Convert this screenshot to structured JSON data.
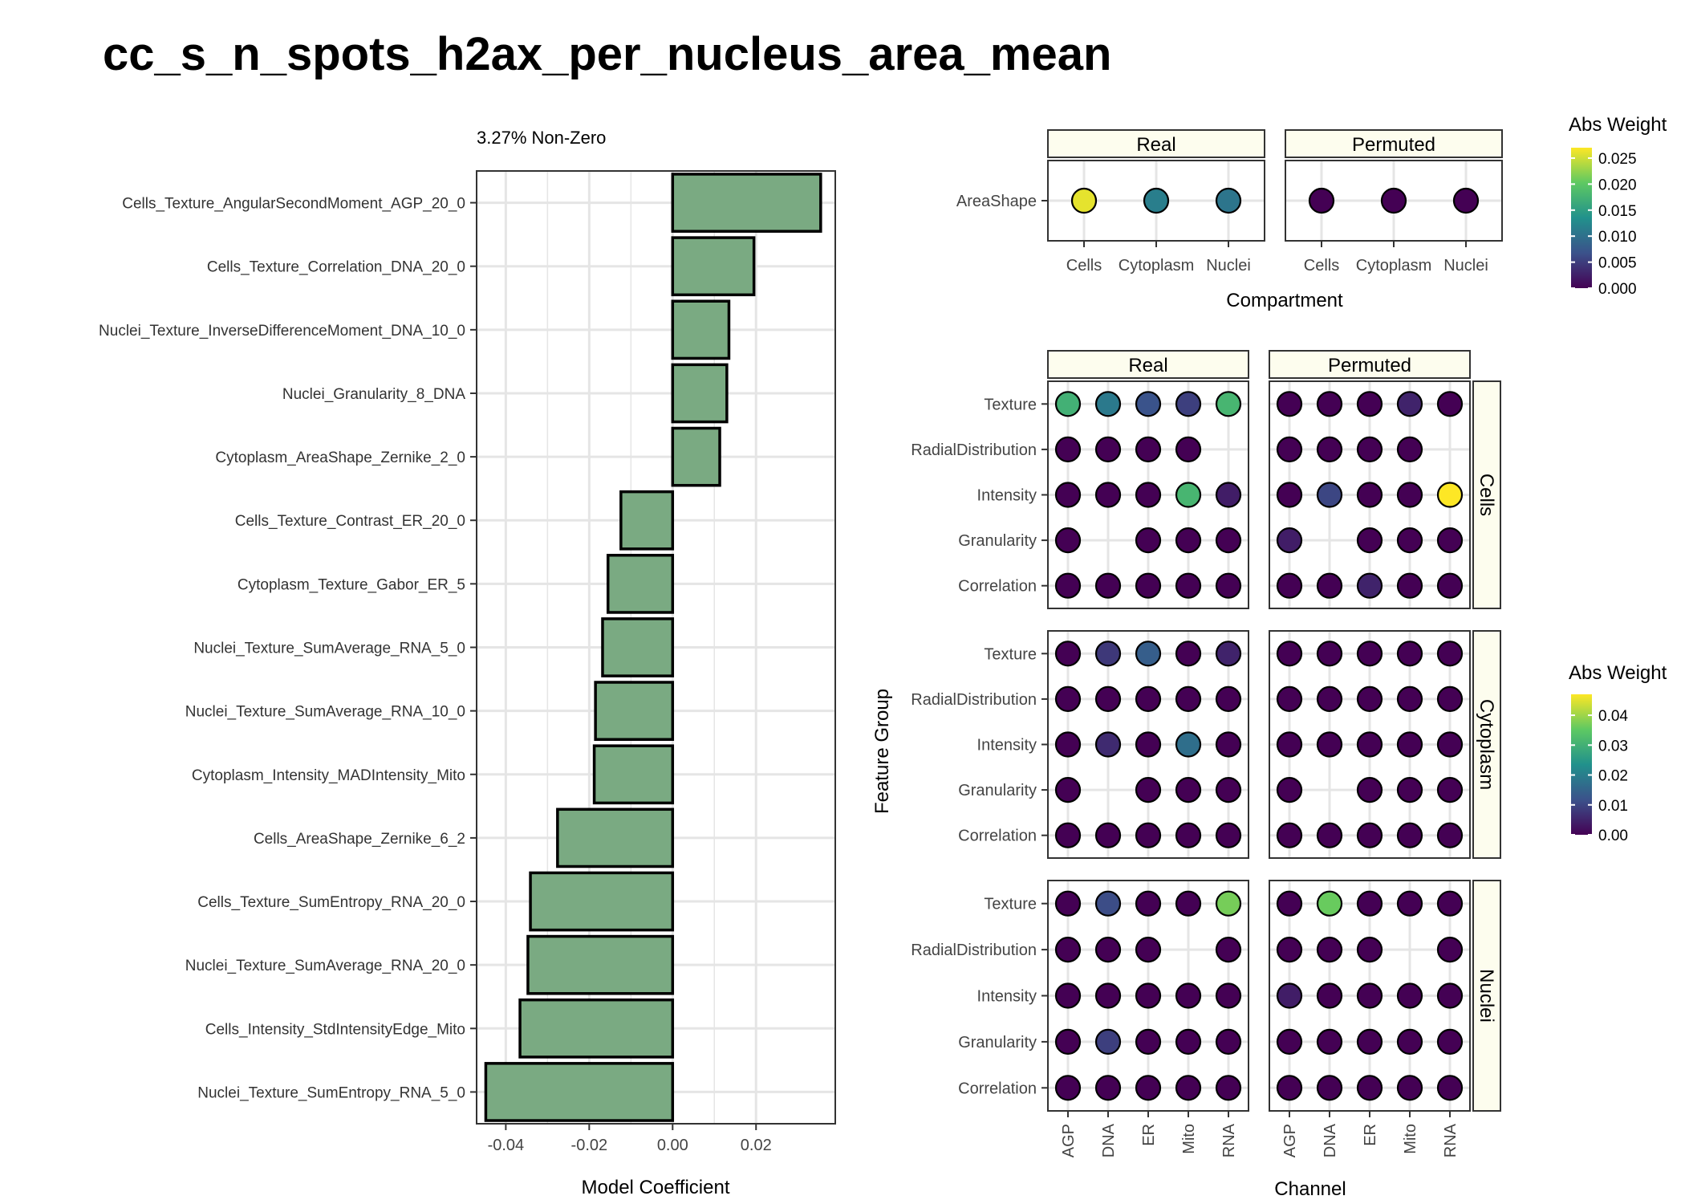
{
  "colors": {
    "bar_fill": "#7aaa82",
    "bar_stroke": "#000000",
    "grid": "#e5e5e5",
    "strip_fill": "#fdfdee",
    "viridis": [
      "#440154",
      "#3b528b",
      "#21918c",
      "#5ec962",
      "#fde725"
    ]
  },
  "chart_data": [
    {
      "type": "bar",
      "orientation": "horizontal",
      "title": "cc_s_n_spots_h2ax_per_nucleus_area_mean",
      "subtitle": "3.27% Non-Zero",
      "xlabel": "Model Coefficient",
      "ylabel": "",
      "xlim": [
        -0.047,
        0.039
      ],
      "xticks": [
        -0.04,
        -0.02,
        0.0,
        0.02
      ],
      "xtick_labels": [
        "-0.04",
        "-0.02",
        "0.00",
        "0.02"
      ],
      "grid": true,
      "categories": [
        "Cells_Texture_AngularSecondMoment_AGP_20_0",
        "Cells_Texture_Correlation_DNA_20_0",
        "Nuclei_Texture_InverseDifferenceMoment_DNA_10_0",
        "Nuclei_Granularity_8_DNA",
        "Cytoplasm_AreaShape_Zernike_2_0",
        "Cells_Texture_Contrast_ER_20_0",
        "Cytoplasm_Texture_Gabor_ER_5",
        "Nuclei_Texture_SumAverage_RNA_5_0",
        "Nuclei_Texture_SumAverage_RNA_10_0",
        "Cytoplasm_Intensity_MADIntensity_Mito",
        "Cells_AreaShape_Zernike_6_2",
        "Cells_Texture_SumEntropy_RNA_20_0",
        "Nuclei_Texture_SumAverage_RNA_20_0",
        "Cells_Intensity_StdIntensityEdge_Mito",
        "Nuclei_Texture_SumEntropy_RNA_5_0"
      ],
      "values": [
        0.0355,
        0.0195,
        0.0135,
        0.013,
        0.0113,
        -0.0124,
        -0.0155,
        -0.0168,
        -0.0185,
        -0.0188,
        -0.0276,
        -0.0341,
        -0.0347,
        -0.0366,
        -0.0448
      ]
    },
    {
      "type": "scatter",
      "subtype": "dot-heatmap",
      "xlabel": "Compartment",
      "ylabel": "",
      "panels": [
        "Real",
        "Permuted"
      ],
      "x_categories": [
        "Cells",
        "Cytoplasm",
        "Nuclei"
      ],
      "y_categories": [
        "AreaShape"
      ],
      "legend": {
        "title": "Abs Weight",
        "placement": "right",
        "range": [
          0,
          0.027
        ],
        "ticks": [
          0.0,
          0.005,
          0.01,
          0.015,
          0.02,
          0.025
        ],
        "tick_labels": [
          "0.000",
          "0.005",
          "0.010",
          "0.015",
          "0.020",
          "0.025"
        ]
      },
      "values": {
        "Real": [
          [
            0.026,
            0.0115,
            0.0105
          ]
        ],
        "Permuted": [
          [
            0.0,
            0.0,
            0.0
          ]
        ]
      }
    },
    {
      "type": "scatter",
      "subtype": "dot-heatmap",
      "xlabel": "Channel",
      "ylabel": "Feature Group",
      "panels": [
        "Real",
        "Permuted"
      ],
      "row_panels": [
        "Cells",
        "Cytoplasm",
        "Nuclei"
      ],
      "x_categories": [
        "AGP",
        "DNA",
        "ER",
        "Mito",
        "RNA"
      ],
      "y_categories": [
        "Texture",
        "RadialDistribution",
        "Intensity",
        "Granularity",
        "Correlation"
      ],
      "legend": {
        "title": "Abs Weight",
        "placement": "right",
        "range": [
          0,
          0.047
        ],
        "ticks": [
          0.0,
          0.01,
          0.02,
          0.03,
          0.04
        ],
        "tick_labels": [
          "0.00",
          "0.01",
          "0.02",
          "0.03",
          "0.04"
        ]
      },
      "values": {
        "Cells": {
          "Real": [
            [
              0.03,
              0.019,
              0.012,
              0.009,
              0.031
            ],
            [
              0.0,
              0.0,
              0.0,
              0.0,
              null
            ],
            [
              0.0,
              0.0,
              0.0,
              0.031,
              0.004
            ],
            [
              0.0,
              null,
              0.0,
              0.0,
              0.0
            ],
            [
              0.0,
              0.0,
              0.0,
              0.0,
              0.0
            ]
          ],
          "Permuted": [
            [
              0.0,
              0.0,
              0.0,
              0.005,
              0.0
            ],
            [
              0.0,
              0.0,
              0.0,
              0.0,
              null
            ],
            [
              0.0,
              0.01,
              0.0,
              0.0,
              0.047
            ],
            [
              0.004,
              null,
              0.0,
              0.0,
              0.0
            ],
            [
              0.0,
              0.0,
              0.005,
              0.0,
              0.0
            ]
          ]
        },
        "Cytoplasm": {
          "Real": [
            [
              0.0,
              0.008,
              0.014,
              0.0,
              0.005
            ],
            [
              0.0,
              0.0,
              0.0,
              0.0,
              0.0
            ],
            [
              0.0,
              0.006,
              0.0,
              0.017,
              0.0
            ],
            [
              0.0,
              null,
              0.0,
              0.0,
              0.0
            ],
            [
              0.0,
              0.0,
              0.0,
              0.0,
              0.0
            ]
          ],
          "Permuted": [
            [
              0.0,
              0.0,
              0.0,
              0.0,
              0.0
            ],
            [
              0.0,
              0.0,
              0.0,
              0.0,
              0.0
            ],
            [
              0.0,
              0.0,
              0.0,
              0.0,
              0.0
            ],
            [
              0.0,
              null,
              0.0,
              0.0,
              0.0
            ],
            [
              0.0,
              0.0,
              0.0,
              0.0,
              0.0
            ]
          ]
        },
        "Nuclei": {
          "Real": [
            [
              0.0,
              0.011,
              0.0,
              0.0,
              0.037
            ],
            [
              0.0,
              0.0,
              0.0,
              null,
              0.0
            ],
            [
              0.0,
              0.0,
              0.0,
              0.0,
              0.0
            ],
            [
              0.0,
              0.009,
              0.0,
              0.0,
              0.0
            ],
            [
              0.0,
              0.0,
              0.0,
              0.0,
              0.0
            ]
          ],
          "Permuted": [
            [
              0.0,
              0.036,
              0.0,
              0.0,
              0.0
            ],
            [
              0.0,
              0.0,
              0.0,
              null,
              0.0
            ],
            [
              0.004,
              0.0,
              0.0,
              0.0,
              0.0
            ],
            [
              0.0,
              0.0,
              0.0,
              0.0,
              0.0
            ],
            [
              0.0,
              0.0,
              0.0,
              0.0,
              0.0
            ]
          ]
        }
      }
    }
  ]
}
